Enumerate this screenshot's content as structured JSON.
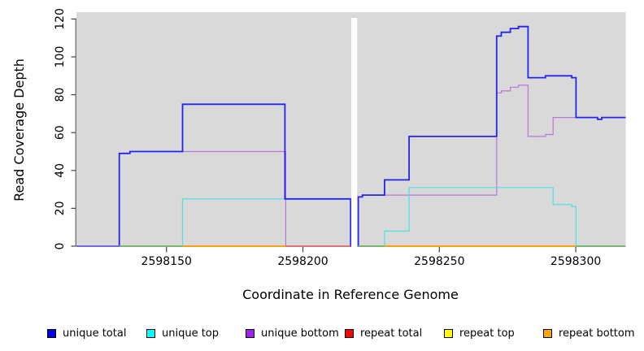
{
  "chart_data": {
    "type": "line",
    "step": true,
    "title": "",
    "xlabel": "Coordinate in Reference Genome",
    "ylabel": "Read Coverage Depth",
    "xlim": [
      2598117,
      2598318.3
    ],
    "ylim": [
      0,
      123.6
    ],
    "x_ticks": [
      2598150,
      2598200,
      2598250,
      2598300
    ],
    "y_ticks": [
      0,
      20,
      40,
      60,
      80,
      100,
      120
    ],
    "panel_bg": "#d9d9d9",
    "axis_color": "#444444",
    "grid": false,
    "legend_position": "bottom",
    "gap_region": {
      "from": 2598217.7,
      "to": 2598219.9,
      "color": "#ffffff"
    },
    "draw_order": [
      "repeat total",
      "repeat top",
      "repeat bottom",
      "unique bottom",
      "unique top",
      "unique total"
    ],
    "series": [
      {
        "name": "unique total",
        "line_color": "#2424ee",
        "line_width": 1.8,
        "regions": [
          {
            "steps": [
              [
                2598117,
                0
              ],
              [
                2598132.7,
                49
              ],
              [
                2598136.6,
                50
              ],
              [
                2598155.9,
                75
              ],
              [
                2598193.4,
                25
              ],
              [
                2598217.5,
                0
              ]
            ],
            "end": 2598218.1
          },
          {
            "steps": [
              [
                2598220,
                0
              ],
              [
                2598220.3,
                26
              ],
              [
                2598221.8,
                27
              ],
              [
                2598229.9,
                35
              ],
              [
                2598238.9,
                58
              ],
              [
                2598271,
                111
              ],
              [
                2598272.7,
                113
              ],
              [
                2598276,
                115
              ],
              [
                2598279,
                116
              ],
              [
                2598282.5,
                89
              ],
              [
                2598288.9,
                90
              ],
              [
                2598298.5,
                89
              ],
              [
                2598300.1,
                68
              ],
              [
                2598308,
                67
              ],
              [
                2598309.5,
                68
              ]
            ],
            "end": 2598318.3
          }
        ]
      },
      {
        "name": "unique top",
        "line_color": "#4de0e0",
        "line_width": 1.2,
        "regions": [
          {
            "steps": [
              [
                2598117,
                0
              ],
              [
                2598155.9,
                25
              ],
              [
                2598217.5,
                0
              ]
            ],
            "end": 2598218.1
          },
          {
            "steps": [
              [
                2598220,
                0
              ],
              [
                2598229.9,
                8
              ],
              [
                2598238.9,
                31
              ],
              [
                2598291.7,
                22
              ],
              [
                2598298.5,
                21
              ],
              [
                2598300.1,
                0
              ]
            ],
            "end": 2598318.3
          }
        ]
      },
      {
        "name": "unique bottom",
        "line_color": "#b678dc",
        "line_width": 1.2,
        "regions": [
          {
            "steps": [
              [
                2598117,
                0
              ],
              [
                2598132.7,
                49
              ],
              [
                2598136.6,
                50
              ],
              [
                2598193.7,
                0
              ]
            ],
            "end": 2598218.1
          },
          {
            "steps": [
              [
                2598220,
                0
              ],
              [
                2598220.3,
                26
              ],
              [
                2598221.8,
                27
              ],
              [
                2598271,
                81
              ],
              [
                2598272.7,
                82
              ],
              [
                2598276,
                84
              ],
              [
                2598279,
                85
              ],
              [
                2598282.5,
                58
              ],
              [
                2598288.9,
                59
              ],
              [
                2598291.7,
                68
              ],
              [
                2598308,
                67
              ],
              [
                2598309.5,
                68
              ]
            ],
            "end": 2598318.3
          }
        ]
      },
      {
        "name": "repeat total",
        "line_color": "#ff0000",
        "line_width": 1.2,
        "regions": [
          {
            "steps": [
              [
                2598117,
                0
              ]
            ],
            "end": 2598218.1
          },
          {
            "steps": [
              [
                2598220,
                0
              ]
            ],
            "end": 2598318.3
          }
        ]
      },
      {
        "name": "repeat top",
        "line_color": "#ffff00",
        "line_width": 1.2,
        "regions": [
          {
            "steps": [
              [
                2598117,
                0
              ]
            ],
            "end": 2598218.1
          },
          {
            "steps": [
              [
                2598220,
                0
              ]
            ],
            "end": 2598318.3
          }
        ]
      },
      {
        "name": "repeat bottom",
        "line_color": "#ff9d00",
        "line_width": 1.4,
        "regions": [
          {
            "steps": [
              [
                2598117,
                0
              ]
            ],
            "end": 2598218.1
          },
          {
            "steps": [
              [
                2598220,
                0
              ]
            ],
            "end": 2598318.3
          }
        ]
      }
    ],
    "baseline_overlays": [
      {
        "from": 2598117,
        "to": 2598132.7,
        "color": "#8273e8"
      },
      {
        "from": 2598132.7,
        "to": 2598155.9,
        "color": "#5cbb6e"
      },
      {
        "from": 2598155.9,
        "to": 2598193.7,
        "color": "#ff9d00"
      },
      {
        "from": 2598193.7,
        "to": 2598217.5,
        "color": "#dc607e"
      },
      {
        "from": 2598220,
        "to": 2598229.9,
        "color": "#5cbb6e"
      },
      {
        "from": 2598229.9,
        "to": 2598300.1,
        "color": "#ff9d00"
      },
      {
        "from": 2598300.1,
        "to": 2598318.3,
        "color": "#5cbb6e"
      }
    ]
  },
  "legend": {
    "items": [
      {
        "label": "unique total",
        "color": "#0000ee"
      },
      {
        "label": "unique top",
        "color": "#00ffff"
      },
      {
        "label": "unique bottom",
        "color": "#a020f0"
      },
      {
        "label": "repeat total",
        "color": "#ff0000"
      },
      {
        "label": "repeat top",
        "color": "#ffff00"
      },
      {
        "label": "repeat bottom",
        "color": "#ffa500"
      }
    ]
  }
}
